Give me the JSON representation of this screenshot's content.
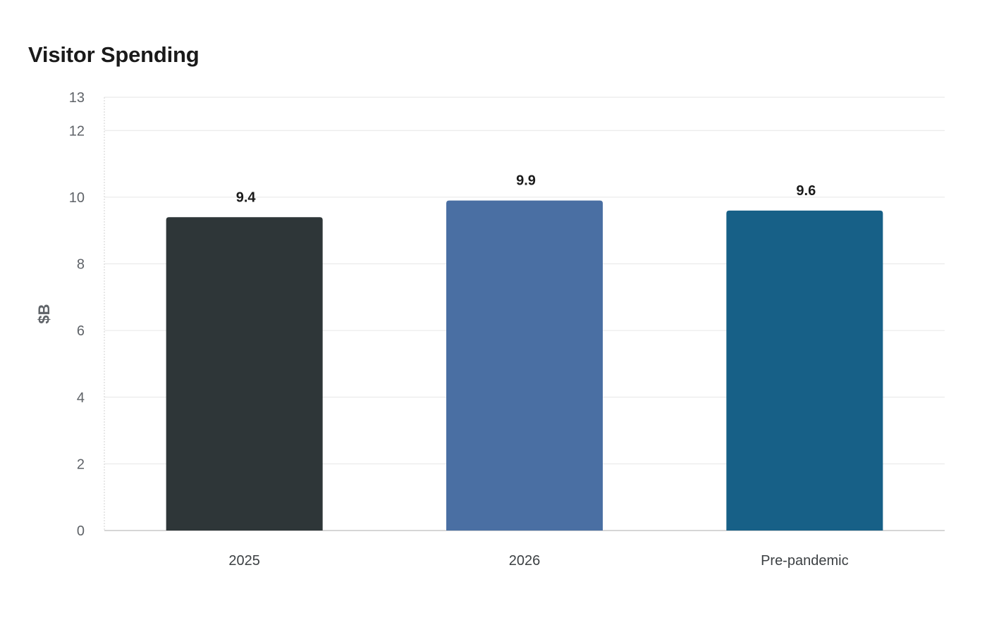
{
  "chart_data": {
    "type": "bar",
    "title": "Visitor Spending",
    "xlabel": "",
    "ylabel": "$B",
    "categories": [
      "2025",
      "2026",
      "Pre-pandemic"
    ],
    "values": [
      9.4,
      9.9,
      9.6
    ],
    "data_labels": [
      "9.4",
      "9.9",
      "9.6"
    ],
    "bar_colors": [
      "#2e3638",
      "#4a6fa3",
      "#176087"
    ],
    "ylim": [
      0,
      13
    ],
    "yticks": [
      0,
      2,
      4,
      6,
      8,
      10,
      12,
      13
    ],
    "grid": true,
    "legend": "none"
  }
}
